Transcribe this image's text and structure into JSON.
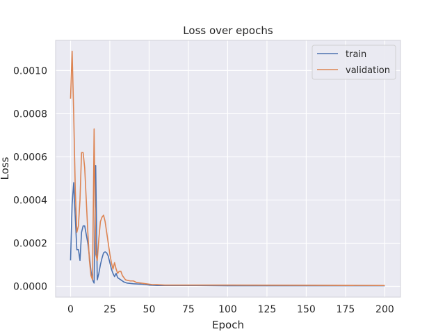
{
  "chart_data": {
    "type": "line",
    "title": "Loss over epochs",
    "xlabel": "Epoch",
    "ylabel": "Loss",
    "xlim": [
      -9.5,
      210
    ],
    "ylim": [
      -5e-05,
      0.00114
    ],
    "xticks": [
      0,
      25,
      50,
      75,
      100,
      125,
      150,
      175,
      200
    ],
    "yticks": [
      0,
      0.0002,
      0.0004,
      0.0006,
      0.0008,
      0.001
    ],
    "xtick_labels": [
      "0",
      "25",
      "50",
      "75",
      "100",
      "125",
      "150",
      "175",
      "200"
    ],
    "ytick_labels": [
      "0.0000",
      "0.0002",
      "0.0004",
      "0.0006",
      "0.0008",
      "0.0010"
    ],
    "grid": true,
    "legend_position": "top-right",
    "colors": {
      "train": "#4c72b0",
      "validation": "#dd8452",
      "background": "#eaeaf2",
      "grid": "#ffffff"
    },
    "series": [
      {
        "name": "train",
        "points": [
          [
            0,
            0.00012
          ],
          [
            1,
            0.00038
          ],
          [
            2,
            0.00048
          ],
          [
            3,
            0.00032
          ],
          [
            4,
            0.00017
          ],
          [
            5,
            0.00017
          ],
          [
            6,
            0.00012
          ],
          [
            7,
            0.00025
          ],
          [
            8,
            0.00028
          ],
          [
            9,
            0.00028
          ],
          [
            10,
            0.00024
          ],
          [
            11,
            0.0002
          ],
          [
            12,
            0.00014
          ],
          [
            13,
            7e-05
          ],
          [
            14,
            3e-05
          ],
          [
            15,
            1.5e-05
          ],
          [
            16,
            0.00056
          ],
          [
            17,
            3e-05
          ],
          [
            18,
            6e-05
          ],
          [
            19,
            0.0001
          ],
          [
            20,
            0.00013
          ],
          [
            21,
            0.000155
          ],
          [
            22,
            0.00016
          ],
          [
            23,
            0.000155
          ],
          [
            24,
            0.00014
          ],
          [
            25,
            0.00011
          ],
          [
            26,
            8e-05
          ],
          [
            27,
            6e-05
          ],
          [
            28,
            4.5e-05
          ],
          [
            29,
            6e-05
          ],
          [
            30,
            4e-05
          ],
          [
            32,
            3e-05
          ],
          [
            34,
            2e-05
          ],
          [
            36,
            1.5e-05
          ],
          [
            40,
            1.2e-05
          ],
          [
            45,
            1e-05
          ],
          [
            50,
            6e-06
          ],
          [
            55,
            4e-06
          ],
          [
            60,
            4e-06
          ],
          [
            80,
            4e-06
          ],
          [
            100,
            3e-06
          ],
          [
            150,
            3e-06
          ],
          [
            200,
            3e-06
          ]
        ]
      },
      {
        "name": "validation",
        "points": [
          [
            0,
            0.00087
          ],
          [
            1,
            0.00109
          ],
          [
            2,
            0.0008
          ],
          [
            3,
            0.00045
          ],
          [
            4,
            0.00025
          ],
          [
            5,
            0.00028
          ],
          [
            6,
            0.0004
          ],
          [
            7,
            0.00062
          ],
          [
            8,
            0.00062
          ],
          [
            9,
            0.00055
          ],
          [
            10,
            0.0004
          ],
          [
            11,
            0.00025
          ],
          [
            12,
            0.00012
          ],
          [
            13,
            5e-05
          ],
          [
            14,
            3e-05
          ],
          [
            15,
            0.00073
          ],
          [
            16,
            0.00015
          ],
          [
            17,
            0.00012
          ],
          [
            18,
            0.00022
          ],
          [
            19,
            0.0003
          ],
          [
            20,
            0.00032
          ],
          [
            21,
            0.00033
          ],
          [
            22,
            0.0003
          ],
          [
            23,
            0.00025
          ],
          [
            24,
            0.0002
          ],
          [
            25,
            0.00015
          ],
          [
            26,
            0.00011
          ],
          [
            27,
            8e-05
          ],
          [
            28,
            0.00011
          ],
          [
            29,
            8e-05
          ],
          [
            30,
            6e-05
          ],
          [
            31,
            7e-05
          ],
          [
            32,
            7e-05
          ],
          [
            33,
            5e-05
          ],
          [
            35,
            3e-05
          ],
          [
            38,
            2.5e-05
          ],
          [
            40,
            2.5e-05
          ],
          [
            42,
            1.8e-05
          ],
          [
            45,
            1.5e-05
          ],
          [
            48,
            1.2e-05
          ],
          [
            52,
            8e-06
          ],
          [
            55,
            8e-06
          ],
          [
            60,
            6e-06
          ],
          [
            80,
            6e-06
          ],
          [
            100,
            6e-06
          ],
          [
            150,
            5e-06
          ],
          [
            200,
            4e-06
          ]
        ]
      }
    ]
  }
}
